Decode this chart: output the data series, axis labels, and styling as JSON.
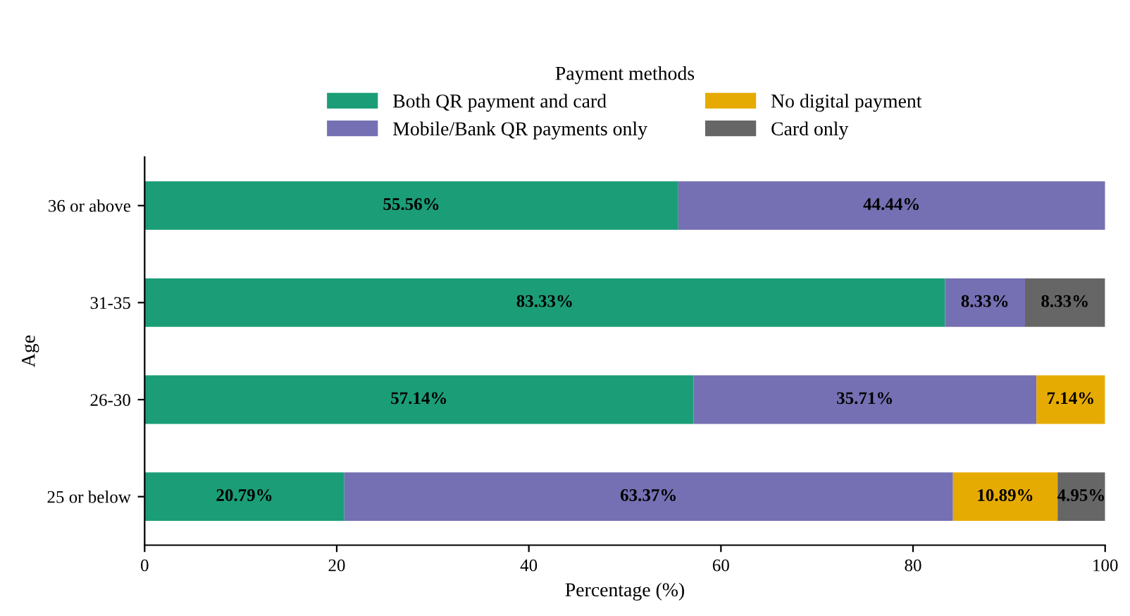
{
  "chart_data": {
    "type": "bar",
    "orientation": "horizontal",
    "stacked": true,
    "xlabel": "Percentage (%)",
    "ylabel": "Age",
    "legend_title": "Payment methods",
    "legend": "top",
    "categories": [
      "36 or above",
      "31-35",
      "26-30",
      "25 or below"
    ],
    "series": [
      {
        "name": "Both QR payment and card",
        "color": "#1b9e77",
        "values": [
          55.56,
          83.33,
          57.14,
          20.79
        ],
        "value_labels": [
          "55.56%",
          "83.33%",
          "57.14%",
          "20.79%"
        ]
      },
      {
        "name": "Mobile/Bank QR payments only",
        "color": "#7570b3",
        "values": [
          44.44,
          8.33,
          35.71,
          63.37
        ],
        "value_labels": [
          "44.44%",
          "8.33%",
          "35.71%",
          "63.37%"
        ]
      },
      {
        "name": "No digital payment",
        "color": "#e6ab02",
        "values": [
          null,
          null,
          7.14,
          10.89
        ],
        "value_labels": [
          null,
          null,
          "7.14%",
          "10.89%"
        ]
      },
      {
        "name": "Card only",
        "color": "#666666",
        "values": [
          null,
          8.33,
          null,
          4.95
        ],
        "value_labels": [
          null,
          "8.33%",
          null,
          "4.95%"
        ]
      }
    ],
    "xlim": [
      0,
      100
    ],
    "xticks": [
      0,
      20,
      40,
      60,
      80,
      100
    ],
    "grid": false
  }
}
